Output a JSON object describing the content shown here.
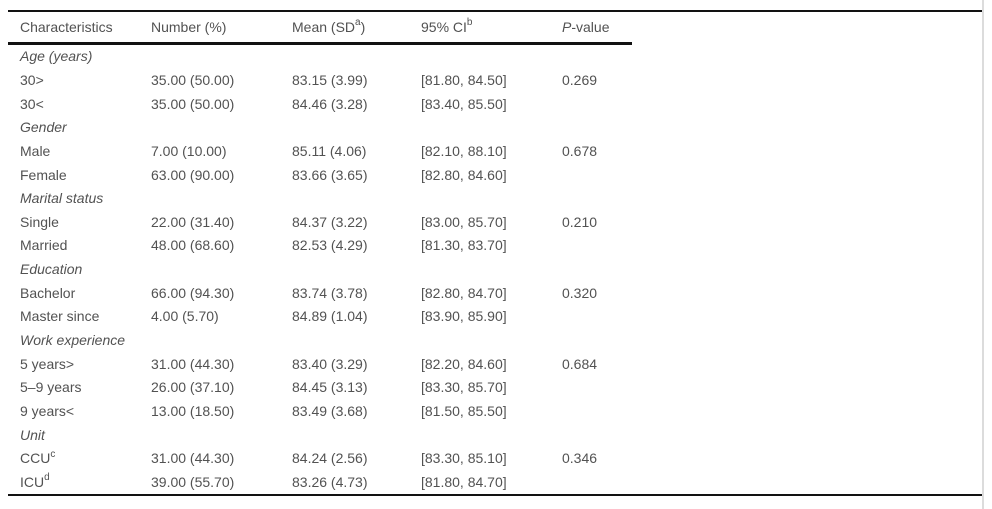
{
  "table": {
    "header": {
      "characteristics": "Characteristics",
      "number": "Number (%)",
      "mean_pre": "Mean (SD",
      "mean_sup": "a",
      "mean_post": ")",
      "ci_pre": "95% CI",
      "ci_sup": "b",
      "p_italic": "P",
      "p_rest": "-value"
    },
    "rows": [
      {
        "section": true,
        "label": "Age (years)"
      },
      {
        "section": false,
        "label": "30>",
        "number": "35.00 (50.00)",
        "mean": "83.15 (3.99)",
        "ci": "[81.80, 84.50]",
        "p": "0.269"
      },
      {
        "section": false,
        "label": "30<",
        "number": "35.00 (50.00)",
        "mean": "84.46 (3.28)",
        "ci": "[83.40, 85.50]",
        "p": ""
      },
      {
        "section": true,
        "label": "Gender"
      },
      {
        "section": false,
        "label": "Male",
        "number": "7.00 (10.00)",
        "mean": "85.11 (4.06)",
        "ci": "[82.10, 88.10]",
        "p": "0.678"
      },
      {
        "section": false,
        "label": "Female",
        "number": "63.00 (90.00)",
        "mean": "83.66 (3.65)",
        "ci": "[82.80, 84.60]",
        "p": ""
      },
      {
        "section": true,
        "label": "Marital status"
      },
      {
        "section": false,
        "label": "Single",
        "number": "22.00 (31.40)",
        "mean": "84.37 (3.22)",
        "ci": "[83.00, 85.70]",
        "p": "0.210"
      },
      {
        "section": false,
        "label": "Married",
        "number": "48.00 (68.60)",
        "mean": "82.53 (4.29)",
        "ci": "[81.30, 83.70]",
        "p": ""
      },
      {
        "section": true,
        "label": "Education"
      },
      {
        "section": false,
        "label": "Bachelor",
        "number": "66.00 (94.30)",
        "mean": "83.74 (3.78)",
        "ci": "[82.80, 84.70]",
        "p": "0.320"
      },
      {
        "section": false,
        "label": "Master since",
        "number": "4.00 (5.70)",
        "mean": "84.89 (1.04)",
        "ci": "[83.90, 85.90]",
        "p": ""
      },
      {
        "section": true,
        "label": "Work experience"
      },
      {
        "section": false,
        "label": "5 years>",
        "number": "31.00 (44.30)",
        "mean": "83.40 (3.29)",
        "ci": "[82.20, 84.60]",
        "p": "0.684"
      },
      {
        "section": false,
        "label": "5–9 years",
        "number": "26.00 (37.10)",
        "mean": "84.45 (3.13)",
        "ci": "[83.30, 85.70]",
        "p": ""
      },
      {
        "section": false,
        "label": "9 years<",
        "number": "13.00 (18.50)",
        "mean": "83.49 (3.68)",
        "ci": "[81.50, 85.50]",
        "p": ""
      },
      {
        "section": true,
        "label": "Unit"
      },
      {
        "section": false,
        "label": "CCU",
        "sup": "c",
        "number": "31.00 (44.30)",
        "mean": "84.24 (2.56)",
        "ci": "[83.30, 85.10]",
        "p": "0.346"
      },
      {
        "section": false,
        "label": "ICU",
        "sup": "d",
        "number": "39.00 (55.70)",
        "mean": "83.26 (4.73)",
        "ci": "[81.80, 84.70]",
        "p": ""
      }
    ]
  }
}
